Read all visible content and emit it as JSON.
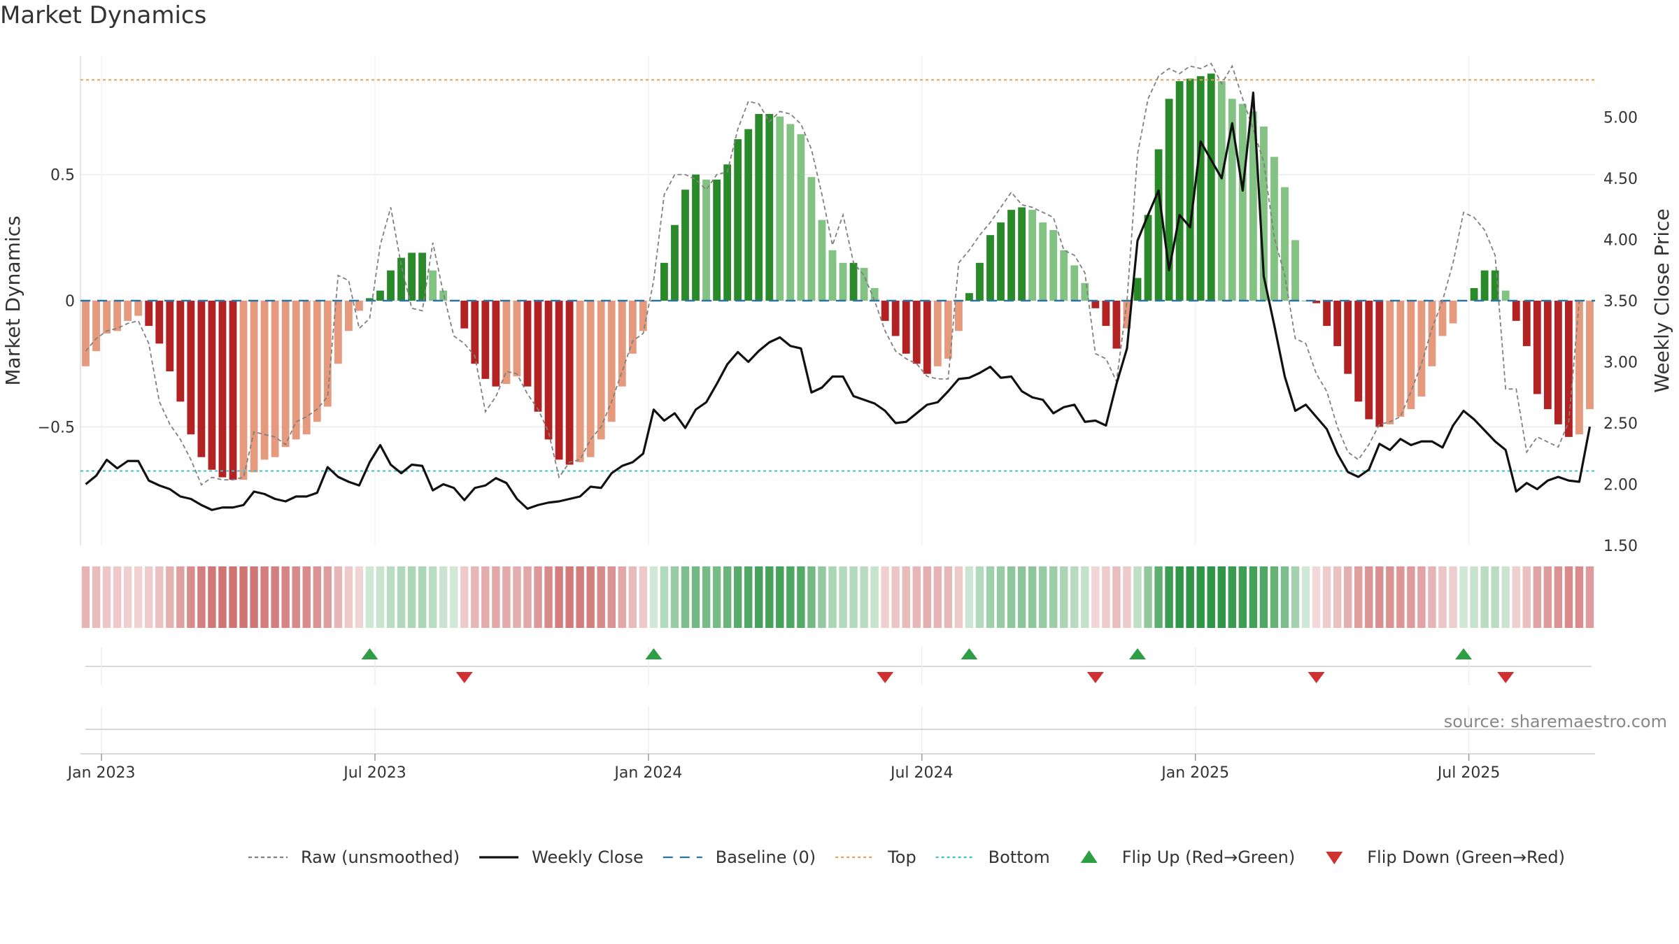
{
  "chart_data": {
    "type": "bar",
    "title": "Market Dynamics",
    "y_left_label": "Market Dynamics",
    "y_right_label": "Weekly Close Price",
    "y_left_ticks": [
      "0.5",
      "0",
      "−0.5"
    ],
    "y_left_tick_values": [
      0.5,
      0,
      -0.5
    ],
    "y_right_ticks": [
      "5.00",
      "4.50",
      "4.00",
      "3.50",
      "3.00",
      "2.50",
      "2.00",
      "1.50"
    ],
    "y_right_tick_values": [
      5.0,
      4.5,
      4.0,
      3.5,
      3.0,
      2.5,
      2.0,
      1.5
    ],
    "ylim_left": [
      -0.97,
      0.97
    ],
    "ylim_right": [
      1.5,
      5.5
    ],
    "top_level": 0.875,
    "bottom_level": -0.675,
    "x_ticks": [
      "Jan 2023",
      "Jul 2023",
      "Jan 2024",
      "Jul 2024",
      "Jan 2025",
      "Jul 2025"
    ],
    "x_tick_week_index": [
      1.5,
      27.5,
      53.5,
      79.5,
      105.5,
      131.5
    ],
    "series": [
      {
        "name": "Market Dynamics (smoothed)",
        "type": "bar",
        "values": [
          -0.26,
          -0.2,
          -0.13,
          -0.12,
          -0.08,
          -0.06,
          -0.1,
          -0.17,
          -0.28,
          -0.4,
          -0.53,
          -0.62,
          -0.67,
          -0.7,
          -0.71,
          -0.71,
          -0.68,
          -0.63,
          -0.62,
          -0.58,
          -0.55,
          -0.53,
          -0.48,
          -0.42,
          -0.25,
          -0.12,
          -0.04,
          0.01,
          0.04,
          0.12,
          0.17,
          0.19,
          0.19,
          0.12,
          0.04,
          0.0,
          -0.11,
          -0.25,
          -0.31,
          -0.34,
          -0.33,
          -0.3,
          -0.34,
          -0.44,
          -0.55,
          -0.63,
          -0.65,
          -0.64,
          -0.62,
          -0.55,
          -0.48,
          -0.34,
          -0.21,
          -0.12,
          0.0,
          0.15,
          0.3,
          0.44,
          0.5,
          0.48,
          0.48,
          0.54,
          0.64,
          0.68,
          0.74,
          0.74,
          0.73,
          0.7,
          0.66,
          0.49,
          0.32,
          0.2,
          0.15,
          0.15,
          0.13,
          0.05,
          -0.08,
          -0.14,
          -0.21,
          -0.25,
          -0.29,
          -0.26,
          -0.23,
          -0.12,
          0.03,
          0.15,
          0.26,
          0.31,
          0.36,
          0.37,
          0.36,
          0.31,
          0.28,
          0.2,
          0.14,
          0.07,
          -0.03,
          -0.1,
          -0.19,
          -0.11,
          0.09,
          0.34,
          0.6,
          0.8,
          0.87,
          0.88,
          0.89,
          0.9,
          0.87,
          0.8,
          0.78,
          0.75,
          0.69,
          0.57,
          0.45,
          0.24,
          0.0,
          -0.01,
          -0.1,
          -0.18,
          -0.29,
          -0.4,
          -0.47,
          -0.5,
          -0.49,
          -0.46,
          -0.43,
          -0.38,
          -0.26,
          -0.14,
          -0.09,
          0.0,
          0.05,
          0.12,
          0.12,
          0.04,
          -0.08,
          -0.18,
          -0.37,
          -0.43,
          -0.49,
          -0.54,
          -0.53,
          -0.43
        ]
      },
      {
        "name": "Raw (unsmoothed)",
        "type": "line",
        "style": "dashed",
        "color": "#808080",
        "values": [
          -0.2,
          -0.15,
          -0.12,
          -0.11,
          -0.09,
          -0.08,
          -0.17,
          -0.4,
          -0.49,
          -0.55,
          -0.63,
          -0.73,
          -0.7,
          -0.71,
          -0.71,
          -0.7,
          -0.52,
          -0.53,
          -0.54,
          -0.57,
          -0.48,
          -0.46,
          -0.43,
          -0.38,
          0.1,
          0.08,
          -0.11,
          -0.07,
          0.22,
          0.37,
          0.14,
          -0.03,
          -0.04,
          0.23,
          0.03,
          -0.14,
          -0.17,
          -0.22,
          -0.44,
          -0.38,
          -0.28,
          -0.29,
          -0.37,
          -0.43,
          -0.52,
          -0.7,
          -0.64,
          -0.63,
          -0.55,
          -0.5,
          -0.4,
          -0.28,
          -0.16,
          -0.13,
          0.08,
          0.42,
          0.5,
          0.5,
          0.48,
          0.44,
          0.5,
          0.51,
          0.68,
          0.79,
          0.78,
          0.71,
          0.75,
          0.74,
          0.7,
          0.6,
          0.42,
          0.22,
          0.34,
          0.15,
          0.1,
          0.0,
          -0.12,
          -0.2,
          -0.23,
          -0.25,
          -0.3,
          -0.31,
          -0.31,
          0.15,
          0.2,
          0.26,
          0.31,
          0.37,
          0.43,
          0.38,
          0.37,
          0.35,
          0.33,
          0.2,
          0.18,
          0.11,
          -0.21,
          -0.23,
          -0.32,
          0.0,
          0.58,
          0.8,
          0.89,
          0.92,
          0.9,
          0.93,
          0.92,
          0.94,
          0.86,
          0.93,
          0.8,
          0.68,
          0.55,
          0.25,
          0.1,
          -0.15,
          -0.17,
          -0.29,
          -0.36,
          -0.5,
          -0.6,
          -0.63,
          -0.57,
          -0.49,
          -0.48,
          -0.46,
          -0.36,
          -0.25,
          -0.11,
          0.0,
          0.15,
          0.35,
          0.33,
          0.28,
          0.18,
          -0.35,
          -0.35,
          -0.6,
          -0.54,
          -0.56,
          -0.58,
          -0.48,
          0.0
        ]
      },
      {
        "name": "Weekly Close",
        "type": "line",
        "axis": "right",
        "color": "#111111",
        "values": [
          2.0,
          2.07,
          2.2,
          2.13,
          2.19,
          2.19,
          2.03,
          1.99,
          1.96,
          1.9,
          1.88,
          1.83,
          1.79,
          1.81,
          1.81,
          1.83,
          1.94,
          1.92,
          1.88,
          1.86,
          1.9,
          1.9,
          1.93,
          2.14,
          2.06,
          2.02,
          1.99,
          2.18,
          2.32,
          2.16,
          2.09,
          2.16,
          2.15,
          1.95,
          2.0,
          1.97,
          1.87,
          1.97,
          1.99,
          2.05,
          2.01,
          1.88,
          1.8,
          1.83,
          1.85,
          1.86,
          1.88,
          1.9,
          1.98,
          1.97,
          2.09,
          2.15,
          2.18,
          2.25,
          2.61,
          2.52,
          2.58,
          2.46,
          2.61,
          2.67,
          2.82,
          2.98,
          3.08,
          3.0,
          3.09,
          3.16,
          3.2,
          3.13,
          3.11,
          2.75,
          2.79,
          2.88,
          2.88,
          2.72,
          2.69,
          2.66,
          2.6,
          2.5,
          2.51,
          2.58,
          2.65,
          2.67,
          2.76,
          2.86,
          2.87,
          2.91,
          2.96,
          2.87,
          2.88,
          2.76,
          2.71,
          2.69,
          2.58,
          2.63,
          2.65,
          2.51,
          2.52,
          2.48,
          2.82,
          3.11,
          3.99,
          4.2,
          4.4,
          3.75,
          4.2,
          4.1,
          4.8,
          4.65,
          4.5,
          4.95,
          4.4,
          5.2,
          3.7,
          3.3,
          2.88,
          2.6,
          2.65,
          2.55,
          2.45,
          2.25,
          2.1,
          2.06,
          2.12,
          2.33,
          2.28,
          2.37,
          2.32,
          2.35,
          2.35,
          2.3,
          2.48,
          2.6,
          2.53,
          2.44,
          2.35,
          2.28,
          1.94,
          2.01,
          1.96,
          2.03,
          2.06,
          2.03,
          2.02,
          2.47
        ]
      }
    ],
    "baseline": {
      "name": "Baseline (0)",
      "value": 0
    },
    "thresholds": [
      {
        "name": "Top",
        "value": 0.875
      },
      {
        "name": "Bottom",
        "value": -0.675
      }
    ],
    "flip_up_weeks": [
      27,
      54,
      84,
      100,
      131
    ],
    "flip_down_weeks": [
      36,
      76,
      96,
      117,
      135
    ],
    "legend": [
      {
        "label": "Raw (unsmoothed)",
        "kind": "line-dashed",
        "color": "#808080"
      },
      {
        "label": "Weekly Close",
        "kind": "line",
        "color": "#111111"
      },
      {
        "label": "Baseline (0)",
        "kind": "line-dashed-long",
        "color": "#2874a6"
      },
      {
        "label": "Top",
        "kind": "line-dotted",
        "color": "#e6a060"
      },
      {
        "label": "Bottom",
        "kind": "line-dotted",
        "color": "#3fc1c9"
      },
      {
        "label": "Flip Up (Red→Green)",
        "kind": "triangle-up",
        "color": "#2e9e44"
      },
      {
        "label": "Flip Down (Green→Red)",
        "kind": "triangle-down",
        "color": "#d03030"
      }
    ],
    "source": "source: sharemaestro.com"
  },
  "colors": {
    "strong_green": "#2a8a2a",
    "light_green": "#82c282",
    "strong_red": "#b22222",
    "light_red": "#e59a7e"
  }
}
